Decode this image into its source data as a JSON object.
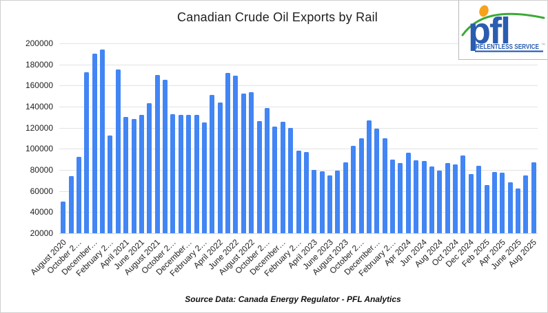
{
  "title": "Canadian Crude Oil Exports by Rail",
  "source_note": "Source Data: Canada Energy Regulator - PFL Analytics",
  "logo": {
    "brand": "pfl",
    "tagline": "RELENTLESS SERVICE",
    "trademark": "™",
    "brand_color": "#2a5db0",
    "dot_color": "#f6a21c",
    "dot_outline_color": "#e07f00",
    "swoosh_color": "#3aaa35"
  },
  "chart_data": {
    "type": "bar",
    "title": "Canadian Crude Oil Exports by Rail",
    "xlabel": "",
    "ylabel": "",
    "ylim": [
      20000,
      200000
    ],
    "ytick_step": 20000,
    "yticks": [
      "200000",
      "180000",
      "160000",
      "140000",
      "120000",
      "100000",
      "80000",
      "60000",
      "40000",
      "20000"
    ],
    "grid": true,
    "legend": false,
    "bar_color": "#4285f4",
    "tick_every": 2,
    "tick_labels": [
      "August 2020",
      "October 2…",
      "December…",
      "February 2…",
      "April 2021",
      "June 2021",
      "August 2021",
      "October 2…",
      "December…",
      "February 2…",
      "April 2022",
      "June 2022",
      "August 2022",
      "October 2…",
      "December…",
      "February 2…",
      "April 2023",
      "June 2023",
      "August 2023",
      "October 2…",
      "December…",
      "February 2…",
      "Apr 2024",
      "Jun 2024",
      "Aug 2024",
      "Oct 2024",
      "Dec 2024",
      "Feb 2025",
      "Apr 2025",
      "June 2025",
      "Aug 2025"
    ],
    "categories": [
      "Aug 2020",
      "Sep 2020",
      "Oct 2020",
      "Nov 2020",
      "Dec 2020",
      "Jan 2021",
      "Feb 2021",
      "Mar 2021",
      "Apr 2021",
      "May 2021",
      "Jun 2021",
      "Jul 2021",
      "Aug 2021",
      "Sep 2021",
      "Oct 2021",
      "Nov 2021",
      "Dec 2021",
      "Jan 2022",
      "Feb 2022",
      "Mar 2022",
      "Apr 2022",
      "May 2022",
      "Jun 2022",
      "Jul 2022",
      "Aug 2022",
      "Sep 2022",
      "Oct 2022",
      "Nov 2022",
      "Dec 2022",
      "Jan 2023",
      "Feb 2023",
      "Mar 2023",
      "Apr 2023",
      "May 2023",
      "Jun 2023",
      "Jul 2023",
      "Aug 2023",
      "Sep 2023",
      "Oct 2023",
      "Nov 2023",
      "Dec 2023",
      "Jan 2024",
      "Feb 2024",
      "Mar 2024",
      "Apr 2024",
      "May 2024",
      "Jun 2024",
      "Jul 2024",
      "Aug 2024",
      "Sep 2024",
      "Oct 2024",
      "Nov 2024",
      "Dec 2024",
      "Jan 2025",
      "Feb 2025",
      "Mar 2025",
      "Apr 2025",
      "May 2025",
      "Jun 2025",
      "Jul 2025",
      "Aug 2025"
    ],
    "values": [
      50000,
      74000,
      92500,
      172500,
      190500,
      194000,
      112500,
      175000,
      130000,
      128000,
      132500,
      143500,
      170000,
      165500,
      133000,
      132000,
      132000,
      132500,
      125000,
      151000,
      144000,
      172000,
      169500,
      152500,
      153500,
      126500,
      139000,
      121000,
      125500,
      119500,
      98500,
      97000,
      80000,
      78500,
      75000,
      79500,
      87500,
      103000,
      110000,
      127000,
      119000,
      110000,
      89500,
      86500,
      96000,
      89000,
      88500,
      83500,
      79500,
      86500,
      85500,
      93500,
      76000,
      84000,
      65500,
      78000,
      77500,
      68000,
      62500,
      74500,
      87500
    ]
  }
}
